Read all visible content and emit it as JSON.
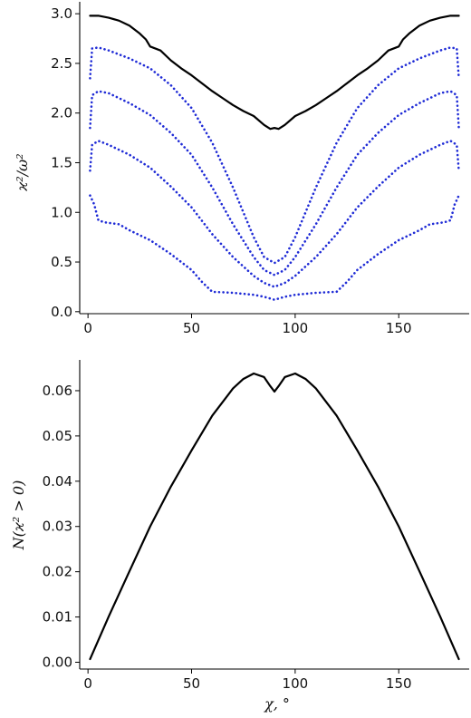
{
  "chart_data": [
    {
      "type": "line",
      "ylabel": "ϰ²/ω²",
      "xlabel": "",
      "xlim": [
        -4,
        184
      ],
      "ylim": [
        -0.02,
        3.12
      ],
      "xticks": [
        0,
        50,
        100,
        150
      ],
      "yticks": [
        0.0,
        0.5,
        1.0,
        1.5,
        2.0,
        2.5,
        3.0
      ],
      "xtick_labels": [
        "0",
        "50",
        "100",
        "150"
      ],
      "ytick_labels": [
        "0.0",
        "0.5",
        "1.0",
        "1.5",
        "2.0",
        "2.5",
        "3.0"
      ],
      "grid": false,
      "series": [
        {
          "style": "solid",
          "color": "#000000",
          "x": [
            1,
            5,
            10,
            15,
            20,
            25,
            28,
            30,
            35,
            40,
            45,
            50,
            55,
            60,
            65,
            70,
            75,
            80,
            85,
            88,
            90,
            92,
            95,
            100,
            105,
            110,
            115,
            120,
            125,
            130,
            135,
            140,
            145,
            150,
            152,
            155,
            160,
            165,
            170,
            175,
            179
          ],
          "y": [
            2.98,
            2.98,
            2.96,
            2.93,
            2.88,
            2.8,
            2.74,
            2.67,
            2.63,
            2.53,
            2.45,
            2.38,
            2.3,
            2.22,
            2.15,
            2.08,
            2.02,
            1.97,
            1.88,
            1.84,
            1.85,
            1.84,
            1.88,
            1.97,
            2.02,
            2.08,
            2.15,
            2.22,
            2.3,
            2.38,
            2.45,
            2.53,
            2.63,
            2.67,
            2.74,
            2.8,
            2.88,
            2.93,
            2.96,
            2.98,
            2.98
          ]
        },
        {
          "style": "dotted",
          "color": "#1f2bd6",
          "x": [
            1,
            2,
            5,
            10,
            20,
            30,
            40,
            50,
            60,
            70,
            80,
            85,
            90,
            95,
            100,
            110,
            120,
            130,
            140,
            150,
            160,
            170,
            175,
            178,
            179
          ],
          "y": [
            2.35,
            2.65,
            2.66,
            2.63,
            2.55,
            2.45,
            2.28,
            2.05,
            1.7,
            1.25,
            0.75,
            0.55,
            0.49,
            0.55,
            0.75,
            1.25,
            1.7,
            2.05,
            2.28,
            2.45,
            2.55,
            2.63,
            2.66,
            2.65,
            2.35
          ]
        },
        {
          "style": "dotted",
          "color": "#1f2bd6",
          "x": [
            1,
            2,
            5,
            10,
            20,
            30,
            40,
            50,
            60,
            70,
            80,
            85,
            90,
            95,
            100,
            110,
            120,
            130,
            140,
            150,
            160,
            170,
            175,
            178,
            179
          ],
          "y": [
            1.85,
            2.18,
            2.22,
            2.2,
            2.1,
            1.98,
            1.8,
            1.58,
            1.25,
            0.88,
            0.55,
            0.42,
            0.37,
            0.42,
            0.55,
            0.88,
            1.25,
            1.58,
            1.8,
            1.98,
            2.1,
            2.2,
            2.22,
            2.18,
            1.85
          ]
        },
        {
          "style": "dotted",
          "color": "#1f2bd6",
          "x": [
            1,
            2,
            5,
            10,
            20,
            30,
            40,
            50,
            60,
            70,
            80,
            85,
            90,
            95,
            100,
            110,
            120,
            130,
            140,
            150,
            160,
            170,
            175,
            178,
            179
          ],
          "y": [
            1.42,
            1.68,
            1.72,
            1.68,
            1.58,
            1.45,
            1.26,
            1.05,
            0.78,
            0.55,
            0.36,
            0.29,
            0.25,
            0.29,
            0.36,
            0.55,
            0.78,
            1.05,
            1.26,
            1.45,
            1.58,
            1.68,
            1.72,
            1.68,
            1.42
          ]
        },
        {
          "style": "dotted",
          "color": "#1f2bd6",
          "x": [
            1,
            3,
            5,
            8,
            15,
            20,
            30,
            40,
            50,
            55,
            60,
            70,
            80,
            85,
            90,
            95,
            100,
            110,
            120,
            125,
            130,
            140,
            150,
            160,
            165,
            172,
            175,
            177,
            179
          ],
          "y": [
            1.17,
            1.08,
            0.92,
            0.9,
            0.88,
            0.82,
            0.72,
            0.58,
            0.42,
            0.3,
            0.2,
            0.19,
            0.17,
            0.15,
            0.12,
            0.15,
            0.17,
            0.19,
            0.2,
            0.3,
            0.42,
            0.58,
            0.72,
            0.82,
            0.88,
            0.9,
            0.92,
            1.08,
            1.17
          ]
        }
      ]
    },
    {
      "type": "line",
      "ylabel": "N(ϰ² > 0)",
      "xlabel": "χ, °",
      "xlim": [
        -4,
        184
      ],
      "ylim": [
        -0.0015,
        0.0668
      ],
      "xticks": [
        0,
        50,
        100,
        150
      ],
      "yticks": [
        0.0,
        0.01,
        0.02,
        0.03,
        0.04,
        0.05,
        0.06
      ],
      "xtick_labels": [
        "0",
        "50",
        "100",
        "150"
      ],
      "ytick_labels": [
        "0.00",
        "0.01",
        "0.02",
        "0.03",
        "0.04",
        "0.05",
        "0.06"
      ],
      "grid": false,
      "series": [
        {
          "style": "solid",
          "color": "#000000",
          "x": [
            1,
            10,
            20,
            30,
            40,
            50,
            60,
            70,
            75,
            80,
            85,
            88,
            90,
            92,
            95,
            100,
            105,
            110,
            120,
            130,
            140,
            150,
            160,
            170,
            179
          ],
          "y": [
            0.0007,
            0.0101,
            0.0201,
            0.03,
            0.0388,
            0.0468,
            0.0545,
            0.0605,
            0.0626,
            0.0638,
            0.063,
            0.061,
            0.0598,
            0.061,
            0.063,
            0.0638,
            0.0626,
            0.0605,
            0.0545,
            0.0468,
            0.0388,
            0.03,
            0.0201,
            0.0101,
            0.0007
          ]
        }
      ]
    }
  ]
}
